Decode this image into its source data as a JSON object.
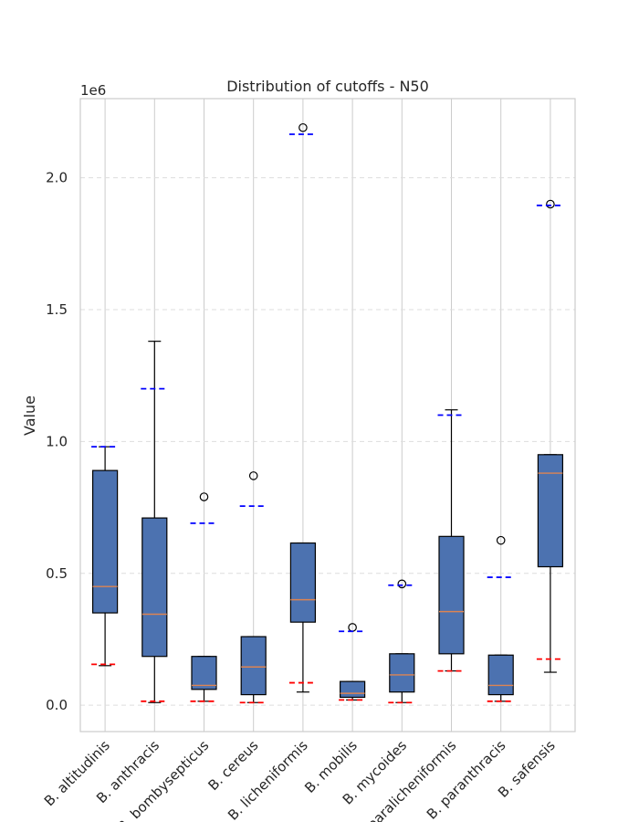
{
  "chart_data": {
    "type": "box",
    "title": "Distribution of cutoffs - N50",
    "ylabel": "Value",
    "xlabel": "",
    "y_offset_label": "1e6",
    "ylim": [
      -100000,
      2300000
    ],
    "yticks": [
      0,
      500000,
      1000000,
      1500000,
      2000000
    ],
    "ytick_labels": [
      "0.0",
      "0.5",
      "1.0",
      "1.5",
      "2.0"
    ],
    "grid": true,
    "colors": {
      "box_fill": "#4c72b0",
      "median": "#dd8452",
      "upper_cutoff": "#0000ff",
      "lower_cutoff": "#ff0000",
      "grid": "#dddddd"
    },
    "categories": [
      "B. altitudinis",
      "B. anthracis",
      "B. bombysepticus",
      "B. cereus",
      "B. licheniformis",
      "B. mobilis",
      "B. mycoides",
      "B. paralicheniformis",
      "B. paranthracis",
      "B. safensis"
    ],
    "boxes": [
      {
        "whislo": 150000,
        "q1": 350000,
        "med": 450000,
        "q3": 890000,
        "whishi": 980000,
        "fliers": [],
        "lower_cutoff": 155000,
        "upper_cutoff": 980000
      },
      {
        "whislo": 10000,
        "q1": 185000,
        "med": 345000,
        "q3": 710000,
        "whishi": 1380000,
        "fliers": [],
        "lower_cutoff": 15000,
        "upper_cutoff": 1200000
      },
      {
        "whislo": 15000,
        "q1": 60000,
        "med": 75000,
        "q3": 185000,
        "whishi": 185000,
        "fliers": [
          790000
        ],
        "lower_cutoff": 15000,
        "upper_cutoff": 690000
      },
      {
        "whislo": 10000,
        "q1": 40000,
        "med": 145000,
        "q3": 260000,
        "whishi": 260000,
        "fliers": [
          870000
        ],
        "lower_cutoff": 10000,
        "upper_cutoff": 755000
      },
      {
        "whislo": 50000,
        "q1": 315000,
        "med": 400000,
        "q3": 615000,
        "whishi": 615000,
        "fliers": [
          2190000
        ],
        "lower_cutoff": 85000,
        "upper_cutoff": 2165000
      },
      {
        "whislo": 20000,
        "q1": 30000,
        "med": 45000,
        "q3": 90000,
        "whishi": 90000,
        "fliers": [
          295000
        ],
        "lower_cutoff": 20000,
        "upper_cutoff": 280000
      },
      {
        "whislo": 10000,
        "q1": 50000,
        "med": 115000,
        "q3": 195000,
        "whishi": 195000,
        "fliers": [
          460000
        ],
        "lower_cutoff": 10000,
        "upper_cutoff": 455000
      },
      {
        "whislo": 130000,
        "q1": 195000,
        "med": 355000,
        "q3": 640000,
        "whishi": 1120000,
        "fliers": [],
        "lower_cutoff": 130000,
        "upper_cutoff": 1100000
      },
      {
        "whislo": 15000,
        "q1": 40000,
        "med": 75000,
        "q3": 190000,
        "whishi": 190000,
        "fliers": [
          625000
        ],
        "lower_cutoff": 15000,
        "upper_cutoff": 485000
      },
      {
        "whislo": 125000,
        "q1": 525000,
        "med": 880000,
        "q3": 950000,
        "whishi": 950000,
        "fliers": [
          1900000
        ],
        "lower_cutoff": 175000,
        "upper_cutoff": 1895000
      }
    ]
  }
}
